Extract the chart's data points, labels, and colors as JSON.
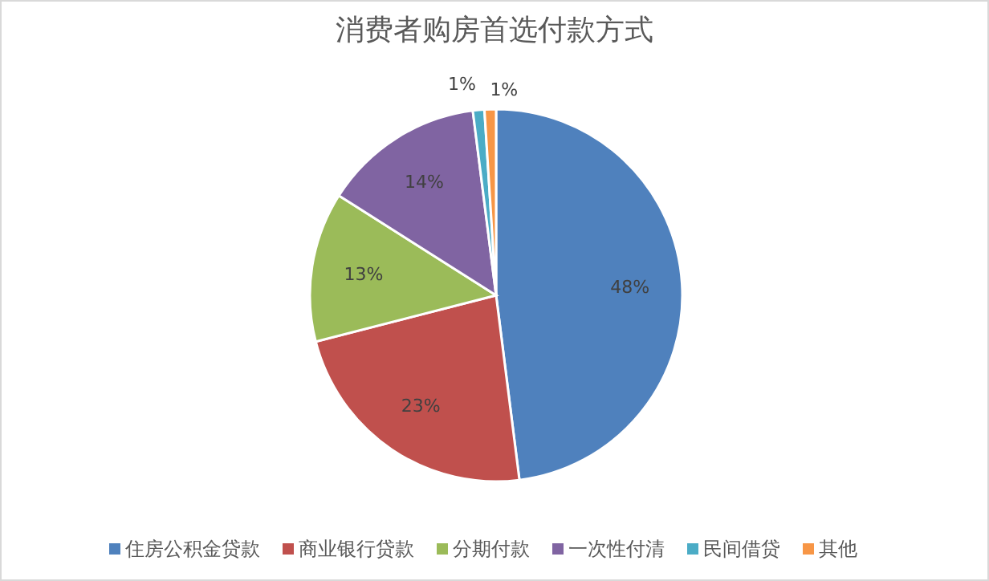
{
  "chart_data": {
    "type": "pie",
    "title": "消费者购房首选付款方式",
    "categories": [
      "住房公积金贷款",
      "商业银行贷款",
      "分期付款",
      "一次性付清",
      "民间借贷",
      "其他"
    ],
    "values": [
      48,
      23,
      13,
      14,
      1,
      1
    ],
    "colors": [
      "#4f81bd",
      "#c0504d",
      "#9bbb59",
      "#8064a2",
      "#4bacc6",
      "#f79646"
    ],
    "value_labels": [
      "48%",
      "23%",
      "13%",
      "14%",
      "1%",
      "1%"
    ],
    "legend": "bottom"
  }
}
